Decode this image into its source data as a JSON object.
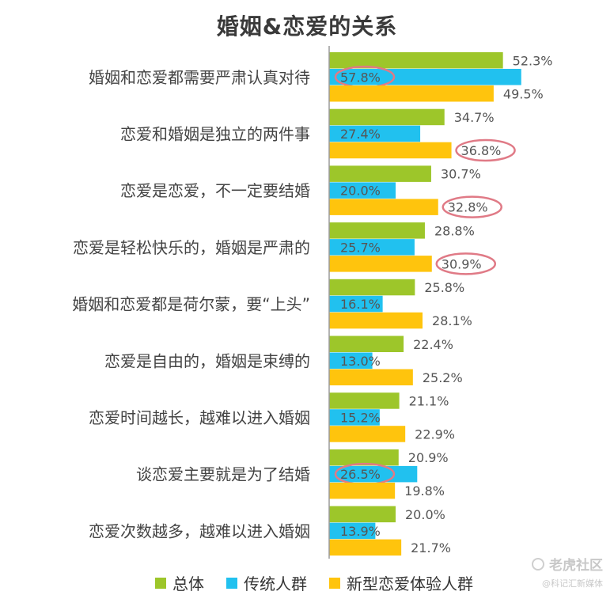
{
  "chart_data": {
    "type": "bar",
    "orientation": "horizontal",
    "title": "婚姻&恋爱的关系",
    "categories": [
      "婚姻和恋爱都需要严肃认真对待",
      "恋爱和婚姻是独立的两件事",
      "恋爱是恋爱，不一定要结婚",
      "恋爱是轻松快乐的，婚姻是严肃的",
      "婚姻和恋爱都是荷尔蒙，要“上头”",
      "恋爱是自由的，婚姻是束缚的",
      "恋爱时间越长，越难以进入婚姻",
      "谈恋爱主要就是为了结婚",
      "恋爱次数越多，越难以进入婚姻"
    ],
    "series": [
      {
        "name": "总体",
        "color": "#9dc62a",
        "values": [
          52.3,
          34.7,
          30.7,
          28.8,
          25.8,
          22.4,
          21.1,
          20.9,
          20.0
        ],
        "labels": [
          "52.3%",
          "34.7%",
          "30.7%",
          "28.8%",
          "25.8%",
          "22.4%",
          "21.1%",
          "20.9%",
          "20.0%"
        ]
      },
      {
        "name": "传统人群",
        "color": "#21c1ef",
        "values": [
          57.8,
          27.4,
          20.0,
          25.7,
          16.1,
          13.0,
          15.2,
          26.5,
          13.9
        ],
        "labels": [
          "57.8%",
          "27.4%",
          "20.0%",
          "25.7%",
          "16.1%",
          "13.0%",
          "15.2%",
          "26.5%",
          "13.9%"
        ]
      },
      {
        "name": "新型恋爱体验人群",
        "color": "#ffc40d",
        "values": [
          49.5,
          36.8,
          32.8,
          30.9,
          28.1,
          25.2,
          22.9,
          19.8,
          21.7
        ],
        "labels": [
          "49.5%",
          "36.8%",
          "32.8%",
          "30.9%",
          "28.1%",
          "25.2%",
          "22.9%",
          "19.8%",
          "21.7%"
        ]
      }
    ],
    "highlights": [
      {
        "series": 1,
        "index": 0
      },
      {
        "series": 2,
        "index": 1
      },
      {
        "series": 2,
        "index": 2
      },
      {
        "series": 2,
        "index": 3
      },
      {
        "series": 1,
        "index": 7
      }
    ],
    "highlight_color": "#e07a86",
    "xlim": [
      0,
      60
    ],
    "grid": false,
    "legend_position": "bottom"
  },
  "watermark": {
    "main": "老虎社区",
    "sub": "@科记汇新媒体"
  }
}
